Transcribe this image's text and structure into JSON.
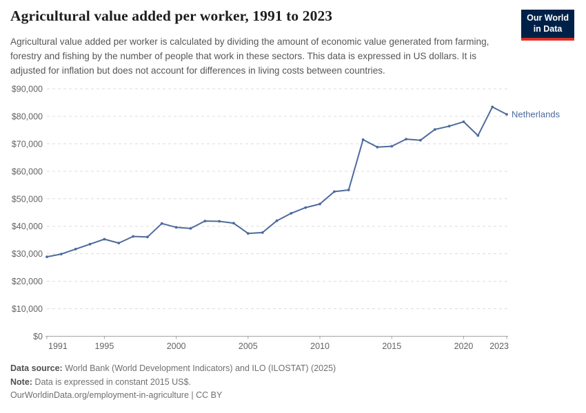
{
  "header": {
    "title": "Agricultural value added per worker, 1991 to 2023",
    "subtitle": "Agricultural value added per worker is calculated by dividing the amount of economic value generated from farming, forestry and fishing by the number of people that work in these sectors. This data is expressed in US dollars. It is adjusted for inflation but does not account for differences in living costs between countries.",
    "logo": {
      "line1": "Our World",
      "line2": "in Data",
      "bg_color": "#002147",
      "stripe_color": "#dc3127"
    }
  },
  "chart_data": {
    "type": "line",
    "title": "Agricultural value added per worker, 1991 to 2023",
    "xlabel": "",
    "ylabel": "",
    "xlim": [
      1991,
      2023
    ],
    "ylim": [
      0,
      90000
    ],
    "grid": "horizontal-dashed",
    "legend_position": "end-of-line-label",
    "x_ticks": [
      1991,
      1995,
      2000,
      2005,
      2010,
      2015,
      2020,
      2023
    ],
    "y_ticks": [
      0,
      10000,
      20000,
      30000,
      40000,
      50000,
      60000,
      70000,
      80000,
      90000
    ],
    "y_tick_labels": [
      "$0",
      "$10,000",
      "$20,000",
      "$30,000",
      "$40,000",
      "$50,000",
      "$60,000",
      "$70,000",
      "$80,000",
      "$90,000"
    ],
    "series": [
      {
        "name": "Netherlands",
        "color": "#4c6a9c",
        "x": [
          1991,
          1992,
          1993,
          1994,
          1995,
          1996,
          1997,
          1998,
          1999,
          2000,
          2001,
          2002,
          2003,
          2004,
          2005,
          2006,
          2007,
          2008,
          2009,
          2010,
          2011,
          2012,
          2013,
          2014,
          2015,
          2016,
          2017,
          2018,
          2019,
          2020,
          2021,
          2022,
          2023
        ],
        "values": [
          28900,
          29900,
          31700,
          33500,
          35300,
          33900,
          36300,
          36100,
          41000,
          39600,
          39200,
          41900,
          41800,
          41100,
          37400,
          37700,
          42000,
          44700,
          46800,
          48100,
          52600,
          53200,
          71500,
          68800,
          69100,
          71700,
          71300,
          75200,
          76400,
          78000,
          73000,
          83400,
          80700
        ]
      }
    ]
  },
  "footer": {
    "data_source_label": "Data source:",
    "data_source_text": " World Bank (World Development Indicators) and ILO (ILOSTAT) (2025)",
    "note_label": "Note:",
    "note_text": " Data is expressed in constant 2015 US$.",
    "license_line": "OurWorldinData.org/employment-in-agriculture | CC BY"
  }
}
